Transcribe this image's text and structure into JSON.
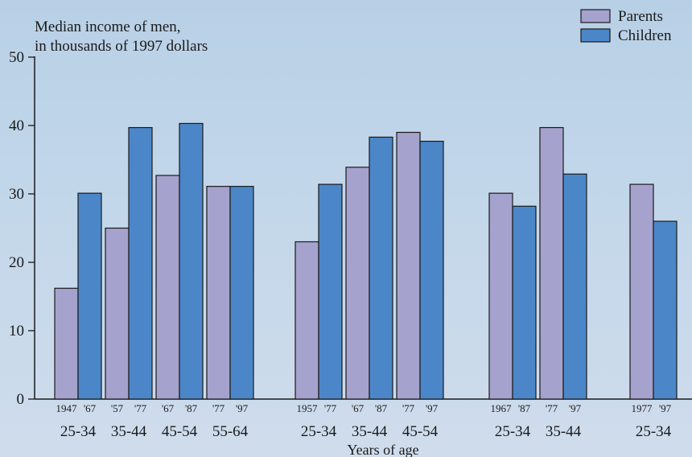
{
  "chart_data": {
    "type": "bar",
    "ylabel_line1": "Median income of men,",
    "ylabel_line2": "in thousands of 1997 dollars",
    "xlabel": "Years of age",
    "ylim": [
      0,
      50
    ],
    "yticks": [
      0,
      10,
      20,
      30,
      40,
      50
    ],
    "grid": false,
    "legend_position": "top-right",
    "series_names": [
      "Parents",
      "Children"
    ],
    "colors": {
      "parents": "#a5a2cd",
      "children": "#4b87c8",
      "outline": "#1a1a1a",
      "background": "#c3d7ea"
    },
    "pairs": [
      {
        "age": "25-34",
        "parent_year": "1947",
        "child_year": "'67",
        "parent": 16.2,
        "child": 30.1
      },
      {
        "age": "35-44",
        "parent_year": "'57",
        "child_year": "'77",
        "parent": 25.0,
        "child": 39.7
      },
      {
        "age": "45-54",
        "parent_year": "'67",
        "child_year": "'87",
        "parent": 32.7,
        "child": 40.3
      },
      {
        "age": "55-64",
        "parent_year": "'77",
        "child_year": "'97",
        "parent": 31.1,
        "child": 31.1
      },
      {
        "age": "25-34",
        "parent_year": "1957",
        "child_year": "'77",
        "parent": 23.0,
        "child": 31.4
      },
      {
        "age": "35-44",
        "parent_year": "'67",
        "child_year": "'87",
        "parent": 33.9,
        "child": 38.3
      },
      {
        "age": "45-54",
        "parent_year": "'77",
        "child_year": "'97",
        "parent": 39.0,
        "child": 37.7
      },
      {
        "age": "25-34",
        "parent_year": "1967",
        "child_year": "'87",
        "parent": 30.1,
        "child": 28.2
      },
      {
        "age": "35-44",
        "parent_year": "'77",
        "child_year": "'97",
        "parent": 39.7,
        "child": 32.9
      },
      {
        "age": "25-34",
        "parent_year": "1977",
        "child_year": "'97",
        "parent": 31.4,
        "child": 26.0
      }
    ]
  }
}
